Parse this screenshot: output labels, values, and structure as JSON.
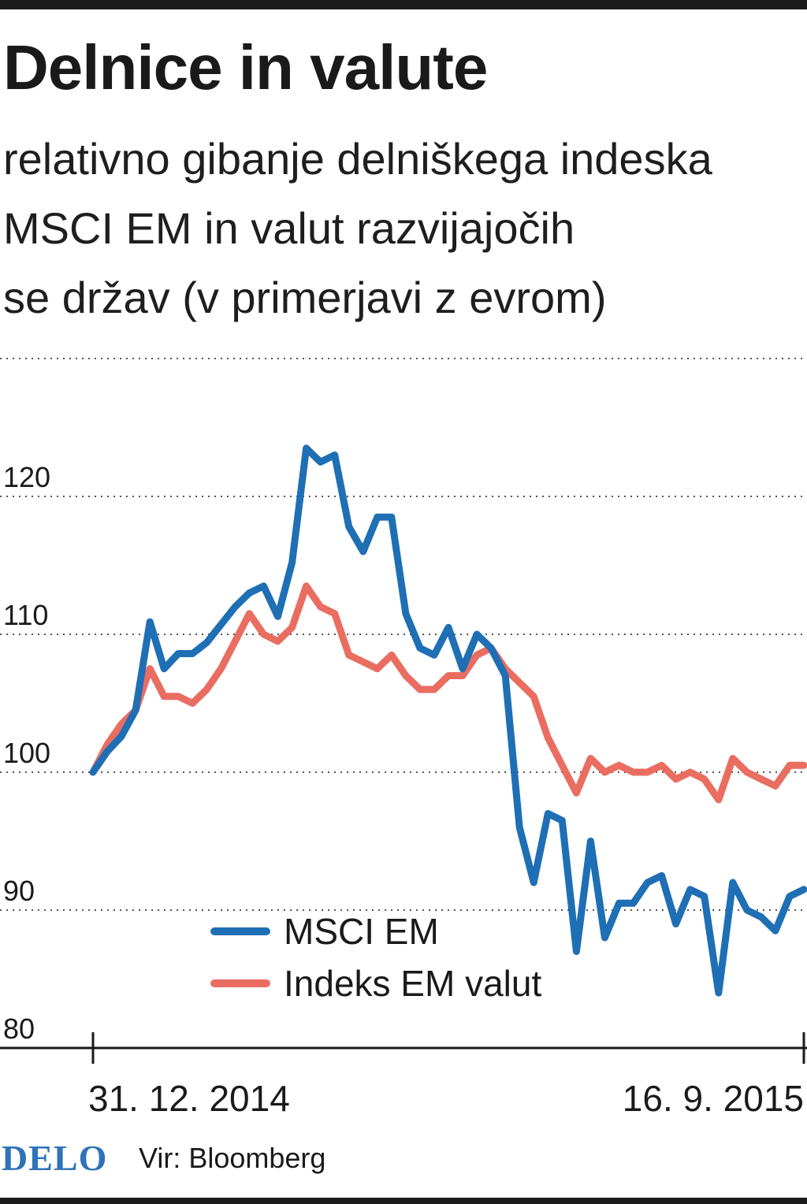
{
  "title": "Delnice in valute",
  "subtitle_lines": [
    "relativno gibanje delniškega indeska",
    "MSCI EM in valut razvijajočih",
    "se držav (v primerjavi z evrom)"
  ],
  "footer": {
    "logo": "DELO",
    "source": "Vir: Bloomberg"
  },
  "chart_data": {
    "type": "line",
    "title": "Delnice in valute",
    "subtitle": "relativno gibanje delniškega indeska MSCI EM in valut razvijajočih se držav (v primerjavi z evrom)",
    "xlabel": "",
    "ylabel": "",
    "x_tick_labels": [
      "31. 12. 2014",
      "16. 9. 2015"
    ],
    "x_range": [
      0,
      1
    ],
    "ylim": [
      80,
      130
    ],
    "yticks": [
      80,
      90,
      100,
      110,
      120
    ],
    "grid": "horizontal dotted",
    "legend_position": "bottom-center",
    "x": [
      0,
      0.02,
      0.04,
      0.06,
      0.08,
      0.1,
      0.12,
      0.14,
      0.16,
      0.18,
      0.2,
      0.22,
      0.24,
      0.26,
      0.28,
      0.3,
      0.32,
      0.34,
      0.36,
      0.38,
      0.4,
      0.42,
      0.44,
      0.46,
      0.48,
      0.5,
      0.52,
      0.54,
      0.56,
      0.58,
      0.6,
      0.62,
      0.64,
      0.66,
      0.68,
      0.7,
      0.72,
      0.74,
      0.76,
      0.78,
      0.8,
      0.82,
      0.84,
      0.86,
      0.88,
      0.9,
      0.92,
      0.94,
      0.96,
      0.98,
      1.0
    ],
    "series": [
      {
        "name": "MSCI EM",
        "color": "#1f6fb5",
        "values": [
          100.0,
          101.5,
          102.6,
          104.5,
          110.9,
          107.5,
          108.6,
          108.6,
          109.4,
          110.7,
          112.0,
          113.0,
          113.5,
          111.3,
          115.2,
          123.5,
          122.5,
          123.0,
          117.8,
          116.0,
          118.5,
          118.5,
          111.5,
          109.0,
          108.5,
          110.5,
          107.5,
          110.0,
          109.0,
          107.0,
          96.0,
          92.0,
          97.0,
          96.5,
          87.0,
          95.0,
          88.0,
          90.5,
          90.5,
          92.0,
          92.5,
          89.0,
          91.5,
          91.0,
          84.0,
          92.0,
          90.0,
          89.5,
          88.5,
          91.0,
          91.5
        ]
      },
      {
        "name": "Indeks EM valut",
        "color": "#ea6d61",
        "values": [
          100.0,
          102.0,
          103.5,
          104.5,
          107.5,
          105.5,
          105.5,
          105.0,
          106.0,
          107.5,
          109.5,
          111.5,
          110.0,
          109.5,
          110.5,
          113.5,
          112.0,
          111.5,
          108.5,
          108.0,
          107.5,
          108.5,
          107.0,
          106.0,
          106.0,
          107.0,
          107.0,
          108.5,
          109.0,
          107.5,
          106.5,
          105.5,
          102.5,
          100.5,
          98.5,
          101.0,
          100.0,
          100.5,
          100.0,
          100.0,
          100.5,
          99.5,
          100.0,
          99.5,
          98.0,
          101.0,
          100.0,
          99.5,
          99.0,
          100.5,
          100.5
        ]
      }
    ]
  }
}
